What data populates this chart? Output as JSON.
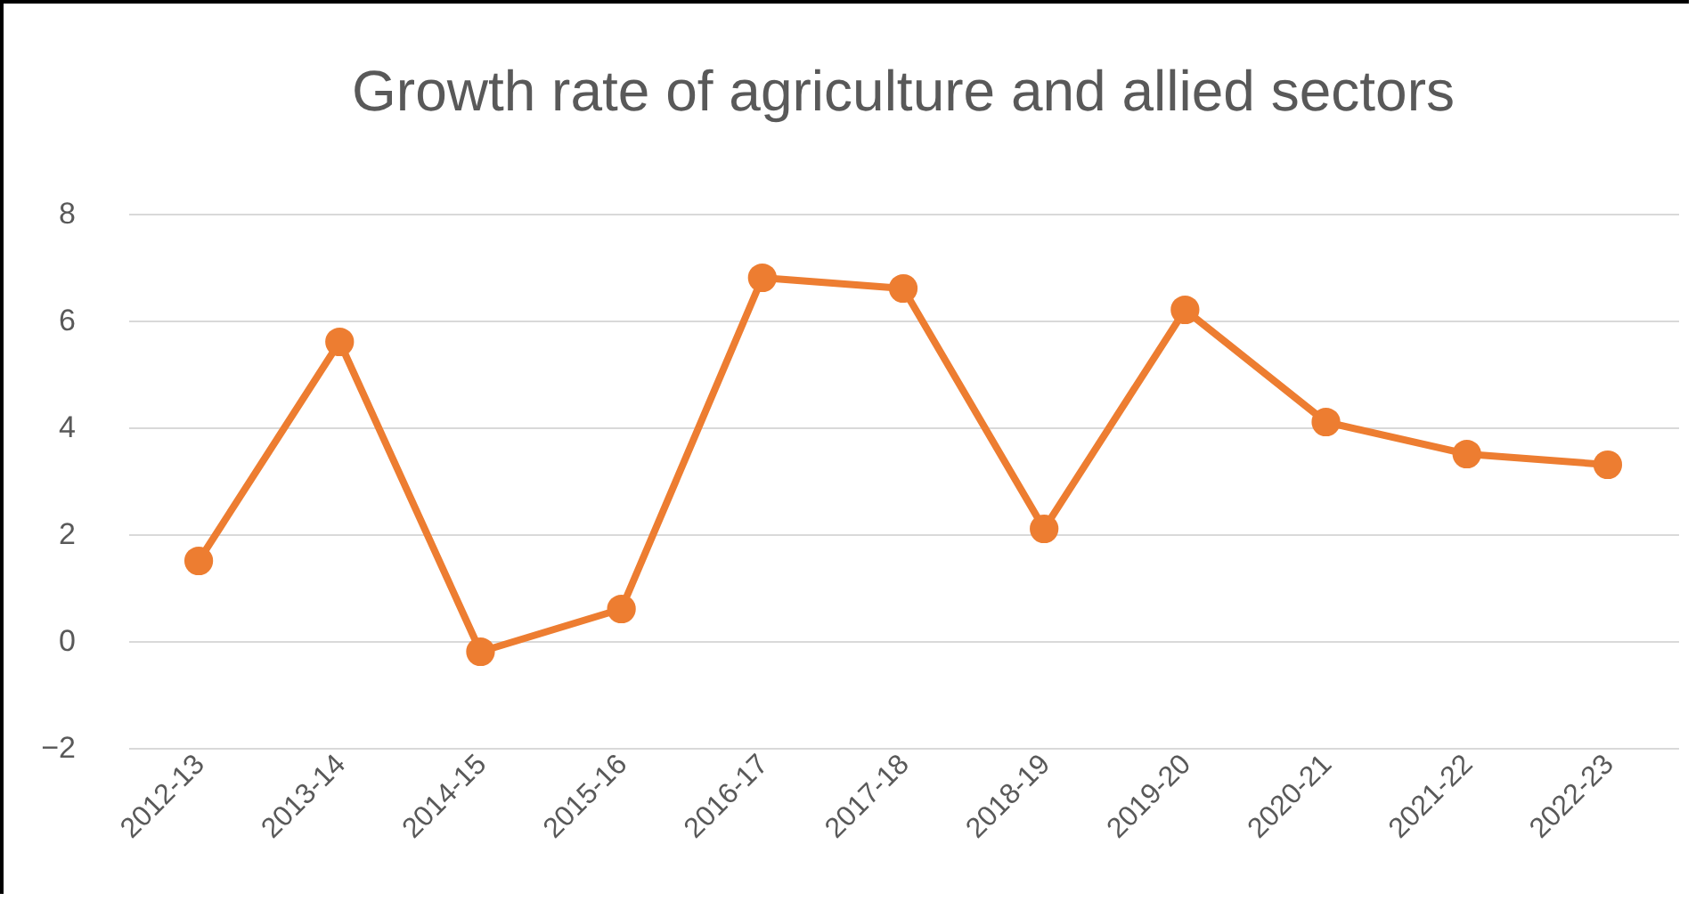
{
  "chart_data": {
    "type": "line",
    "title": "Growth rate of agriculture and allied sectors",
    "categories": [
      "2012-13",
      "2013-14",
      "2014-15",
      "2015-16",
      "2016-17",
      "2017-18",
      "2018-19",
      "2019-20",
      "2020-21",
      "2021-22",
      "2022-23"
    ],
    "series": [
      {
        "color": "#ed7d31",
        "values": [
          1.5,
          5.6,
          -0.2,
          0.6,
          6.8,
          6.6,
          2.1,
          6.2,
          4.1,
          3.5,
          3.3
        ]
      }
    ],
    "ylim": [
      -2,
      8
    ],
    "yticks": [
      -2,
      0,
      2,
      4,
      6,
      8
    ],
    "grid": "y",
    "marker": "circle"
  }
}
